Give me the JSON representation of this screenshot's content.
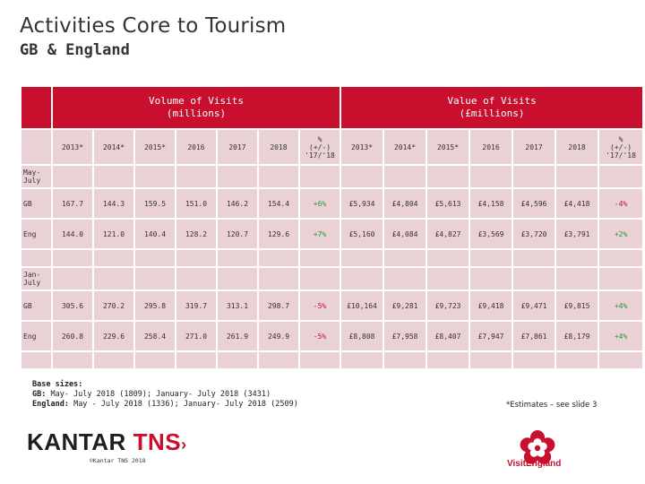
{
  "page": {
    "title": "Activities Core to Tourism",
    "subtitle": "GB & England"
  },
  "table": {
    "volume_header_line1": "Volume of Visits",
    "volume_header_line2": "(millions)",
    "value_header_line1": "Value of Visits",
    "value_header_line2": "(£millions)",
    "columns": [
      "2013*",
      "2014*",
      "2015*",
      "2016",
      "2017",
      "2018",
      "%\n(+/-)\n'17/'18",
      "2013*",
      "2014*",
      "2015*",
      "2016",
      "2017",
      "2018",
      "%\n(+/-)\n'17/'18"
    ],
    "section1_label": "May-\nJuly",
    "section1_rows": [
      {
        "label": "GB",
        "cells": [
          "167.7",
          "144.3",
          "159.5",
          "151.0",
          "146.2",
          "154.4",
          "+6%",
          "£5,934",
          "£4,804",
          "£5,613",
          "£4,158",
          "£4,596",
          "£4,418",
          "-4%"
        ]
      },
      {
        "label": "Eng",
        "cells": [
          "144.0",
          "121.0",
          "140.4",
          "128.2",
          "120.7",
          "129.6",
          "+7%",
          "£5,160",
          "£4,084",
          "£4,827",
          "£3,569",
          "£3,720",
          "£3,791",
          "+2%"
        ]
      }
    ],
    "section2_label": "Jan-\nJuly",
    "section2_rows": [
      {
        "label": "GB",
        "cells": [
          "305.6",
          "270.2",
          "295.8",
          "319.7",
          "313.1",
          "298.7",
          "-5%",
          "£10,164",
          "£9,281",
          "£9,723",
          "£9,418",
          "£9,471",
          "£9,815",
          "+4%"
        ]
      },
      {
        "label": "Eng",
        "cells": [
          "260.8",
          "229.6",
          "258.4",
          "271.0",
          "261.9",
          "249.9",
          "-5%",
          "£8,808",
          "£7,958",
          "£8,407",
          "£7,947",
          "£7,861",
          "£8,179",
          "+4%"
        ]
      }
    ]
  },
  "footer": {
    "base_title": "Base sizes:",
    "base_gb_label": "GB:",
    "base_gb_text": " May- July 2018 (1809); January- July 2018 (3431)",
    "base_eng_label": "England:",
    "base_eng_text": " May - July 2018 (1336); January- July 2018 (2509)",
    "estimates_note": "*Estimates – see slide 3",
    "kantar_word": "KANTAR",
    "tns_word": "TNS",
    "copyright": "©Kantar TNS 2018",
    "visit_england": "VisitEngland"
  },
  "colors": {
    "header_red": "#c8102e",
    "cell_pink": "#ead1d5",
    "positive": "#2a9a2a",
    "negative": "#c8102e"
  }
}
